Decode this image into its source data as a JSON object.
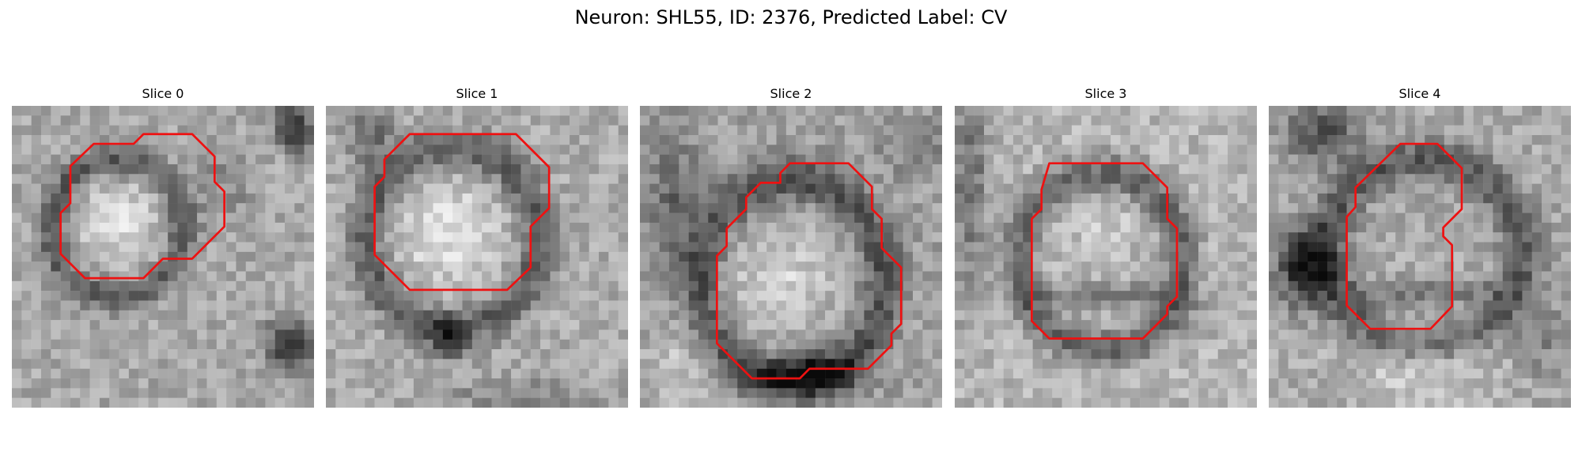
{
  "figure": {
    "title": "Neuron: SHL55, ID: 2376, Predicted Label: CV",
    "colormap": "gray",
    "contour_color": "#ee1111"
  },
  "panels": [
    {
      "title": "Slice 0"
    },
    {
      "title": "Slice 1"
    },
    {
      "title": "Slice 2"
    },
    {
      "title": "Slice 3"
    },
    {
      "title": "Slice 4"
    }
  ]
}
